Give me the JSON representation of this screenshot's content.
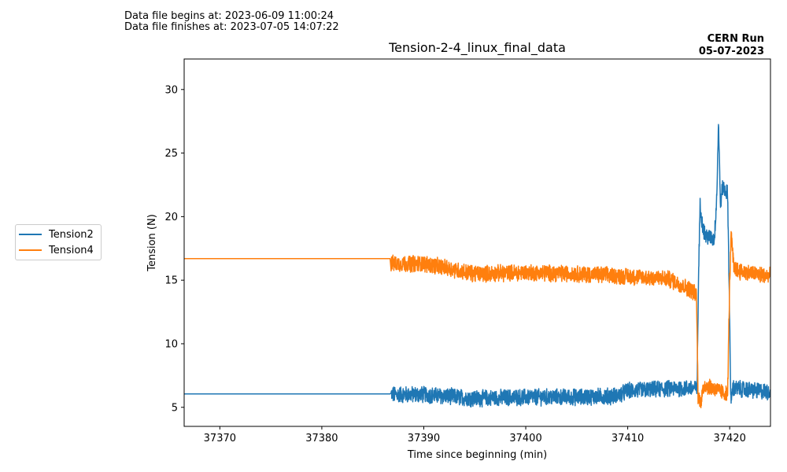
{
  "header": {
    "begin_line": "Data file begins at: 2023-06-09 11:00:24",
    "finish_line": "Data file finishes at: 2023-07-05 14:07:22",
    "run_label": "CERN Run",
    "run_date": "05-07-2023"
  },
  "chart_data": {
    "type": "line",
    "title": "Tension-2-4_linux_final_data",
    "xlabel": "Time since beginning (min)",
    "ylabel": "Tension (N)",
    "xlim": [
      37366.5,
      37424.0
    ],
    "ylim": [
      3.5,
      32.4
    ],
    "xticks": [
      37370,
      37380,
      37390,
      37400,
      37410,
      37420
    ],
    "yticks": [
      5,
      10,
      15,
      20,
      25,
      30
    ],
    "grid": false,
    "legend_position": "left-outside",
    "series": [
      {
        "name": "Tension2",
        "color": "#1f77b4",
        "noise": 0.6,
        "points": [
          [
            37366.5,
            6.05
          ],
          [
            37386.7,
            6.05
          ],
          [
            37386.8,
            6.0
          ],
          [
            37390,
            6.0
          ],
          [
            37395,
            5.7
          ],
          [
            37400,
            5.8
          ],
          [
            37405,
            5.8
          ],
          [
            37409,
            5.9
          ],
          [
            37410,
            6.3
          ],
          [
            37415,
            6.5
          ],
          [
            37416.8,
            6.5
          ],
          [
            37416.95,
            15.5
          ],
          [
            37417.1,
            21.0
          ],
          [
            37417.3,
            19.5
          ],
          [
            37417.6,
            18.5
          ],
          [
            37418.5,
            18.2
          ],
          [
            37418.75,
            22.0
          ],
          [
            37418.9,
            27.5
          ],
          [
            37419.0,
            24.0
          ],
          [
            37419.1,
            21.0
          ],
          [
            37419.3,
            22.3
          ],
          [
            37419.8,
            21.8
          ],
          [
            37420.0,
            12.0
          ],
          [
            37420.1,
            5.5
          ],
          [
            37420.3,
            6.5
          ],
          [
            37424.0,
            6.2
          ]
        ]
      },
      {
        "name": "Tension4",
        "color": "#ff7f0e",
        "noise": 0.6,
        "points": [
          [
            37366.5,
            16.7
          ],
          [
            37386.7,
            16.7
          ],
          [
            37386.8,
            16.3
          ],
          [
            37390,
            16.3
          ],
          [
            37392,
            16.0
          ],
          [
            37395,
            15.5
          ],
          [
            37400,
            15.6
          ],
          [
            37405,
            15.5
          ],
          [
            37410,
            15.3
          ],
          [
            37414,
            15.1
          ],
          [
            37416.3,
            14.2
          ],
          [
            37416.75,
            13.8
          ],
          [
            37416.9,
            5.8
          ],
          [
            37417.2,
            5.5
          ],
          [
            37417.5,
            6.8
          ],
          [
            37419.8,
            6.0
          ],
          [
            37420.0,
            15.0
          ],
          [
            37420.15,
            18.5
          ],
          [
            37420.4,
            16.0
          ],
          [
            37421,
            15.7
          ],
          [
            37424.0,
            15.3
          ]
        ]
      }
    ]
  }
}
